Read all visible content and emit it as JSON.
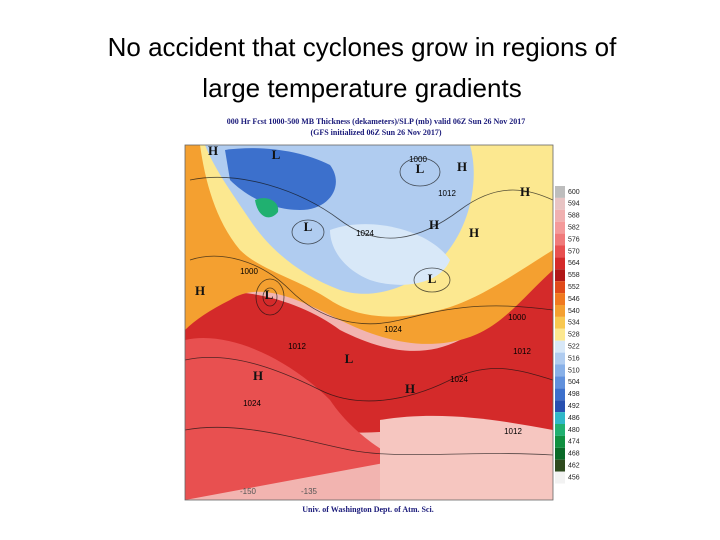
{
  "slide": {
    "title_lines": [
      "No accident that cyclones grow in regions of",
      "large temperature gradients"
    ]
  },
  "map": {
    "header": [
      "000 Hr Fcst 1000-500 MB Thickness (dekameters)/SLP (mb) valid 06Z Sun 26 Nov 2017",
      "(GFS initialized 06Z Sun 26 Nov 2017)"
    ],
    "footer": "Univ. of Washington Dept. of Atm. Sci.",
    "longitudes": [
      "-150",
      "-135"
    ],
    "centers": [
      "H",
      "L",
      "L",
      "H",
      "H",
      "L",
      "H",
      "H",
      "L",
      "H",
      "L",
      "L",
      "H",
      "H"
    ],
    "isobar_labels": [
      "1000",
      "1012",
      "1024",
      "1000",
      "1024",
      "1012",
      "1024",
      "1024",
      "1000",
      "1012",
      "1012"
    ],
    "colorbar": {
      "levels": [
        600,
        594,
        588,
        582,
        576,
        570,
        564,
        558,
        552,
        546,
        540,
        534,
        528,
        522,
        516,
        510,
        504,
        498,
        492,
        486,
        480,
        474,
        468,
        462,
        456
      ],
      "colors": [
        "#bdbdbd",
        "#e8c4c4",
        "#f0b0b0",
        "#f49a9a",
        "#f07a7a",
        "#e85050",
        "#d42a2a",
        "#b01818",
        "#e04a1a",
        "#f07a20",
        "#f4a030",
        "#f8c850",
        "#fce890",
        "#d8e8f8",
        "#b0ccf0",
        "#88b0e8",
        "#6090dc",
        "#3c70cc",
        "#2850b0",
        "#30b8c8",
        "#20b070",
        "#109040",
        "#0a6a28",
        "#2e4a1e",
        "#f2f2f2"
      ]
    }
  }
}
